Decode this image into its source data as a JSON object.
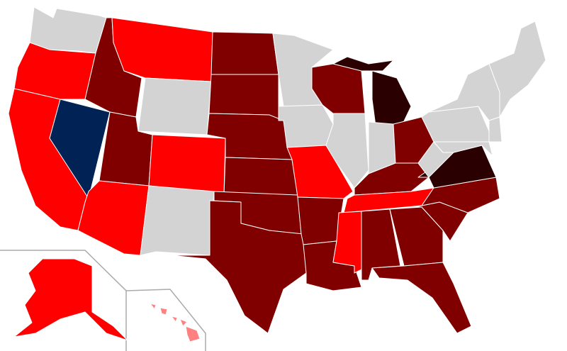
{
  "map": {
    "colors": {
      "none": "#d3d3d3",
      "mid": "#ff0000",
      "high": "#800000",
      "top": "#2b0000",
      "other": "#002255",
      "light": "#ff8080"
    },
    "border_color": "#ffffff",
    "inset_color": "#aaaaaa"
  }
}
